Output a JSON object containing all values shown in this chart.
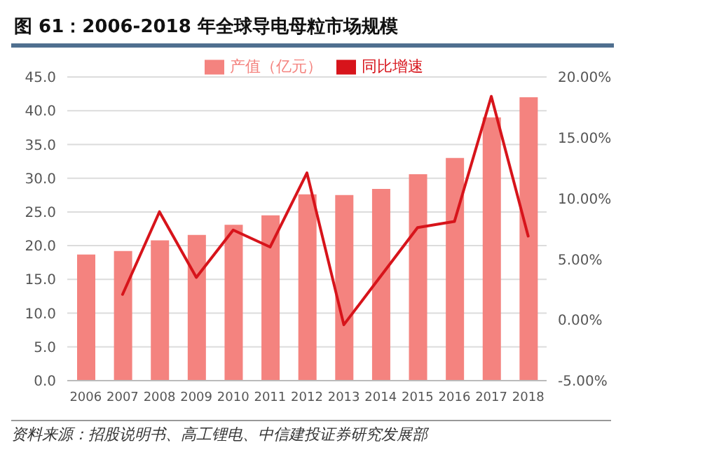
{
  "chart_data": {
    "type": "bar",
    "title": "图 61：2006-2018 年全球导电母粒市场规模",
    "categories": [
      "2006",
      "2007",
      "2008",
      "2009",
      "2010",
      "2011",
      "2012",
      "2013",
      "2014",
      "2015",
      "2016",
      "2017",
      "2018"
    ],
    "series": [
      {
        "name": "产值（亿元）",
        "color": "#f4837f",
        "values": [
          18.7,
          19.2,
          20.8,
          21.6,
          23.1,
          24.5,
          27.6,
          27.5,
          28.4,
          30.6,
          33.0,
          39.0,
          42.0
        ]
      },
      {
        "name": "同比增速",
        "type": "line",
        "axis": "y2",
        "color": "#d7141b",
        "values": [
          null,
          2.1,
          8.9,
          3.5,
          7.4,
          6.0,
          12.1,
          -0.4,
          3.6,
          7.6,
          8.1,
          18.4,
          6.9
        ]
      }
    ],
    "ylim": [
      0,
      45
    ],
    "yticks": [
      {
        "value": 0,
        "label": "0.0"
      },
      {
        "value": 5,
        "label": "5.0"
      },
      {
        "value": 10,
        "label": "10.0"
      },
      {
        "value": 15,
        "label": "15.0"
      },
      {
        "value": 20,
        "label": "20.0"
      },
      {
        "value": 25,
        "label": "25.0"
      },
      {
        "value": 30,
        "label": "30.0"
      },
      {
        "value": 35,
        "label": "35.0"
      },
      {
        "value": 40,
        "label": "40.0"
      },
      {
        "value": 45,
        "label": "45.0"
      }
    ],
    "y2lim": [
      -5,
      20
    ],
    "y2ticks": [
      {
        "value": -5,
        "label": "-5.00%"
      },
      {
        "value": 0,
        "label": "0.00%"
      },
      {
        "value": 5,
        "label": "5.00%"
      },
      {
        "value": 10,
        "label": "10.00%"
      },
      {
        "value": 15,
        "label": "15.00%"
      },
      {
        "value": 20,
        "label": "20.00%"
      }
    ],
    "grid": "y",
    "legend": "top",
    "marker": "none",
    "line_style": "solid",
    "annotations": [
      "资料来源：招股说明书、高工锂电、中信建投证券研究发展部"
    ]
  }
}
